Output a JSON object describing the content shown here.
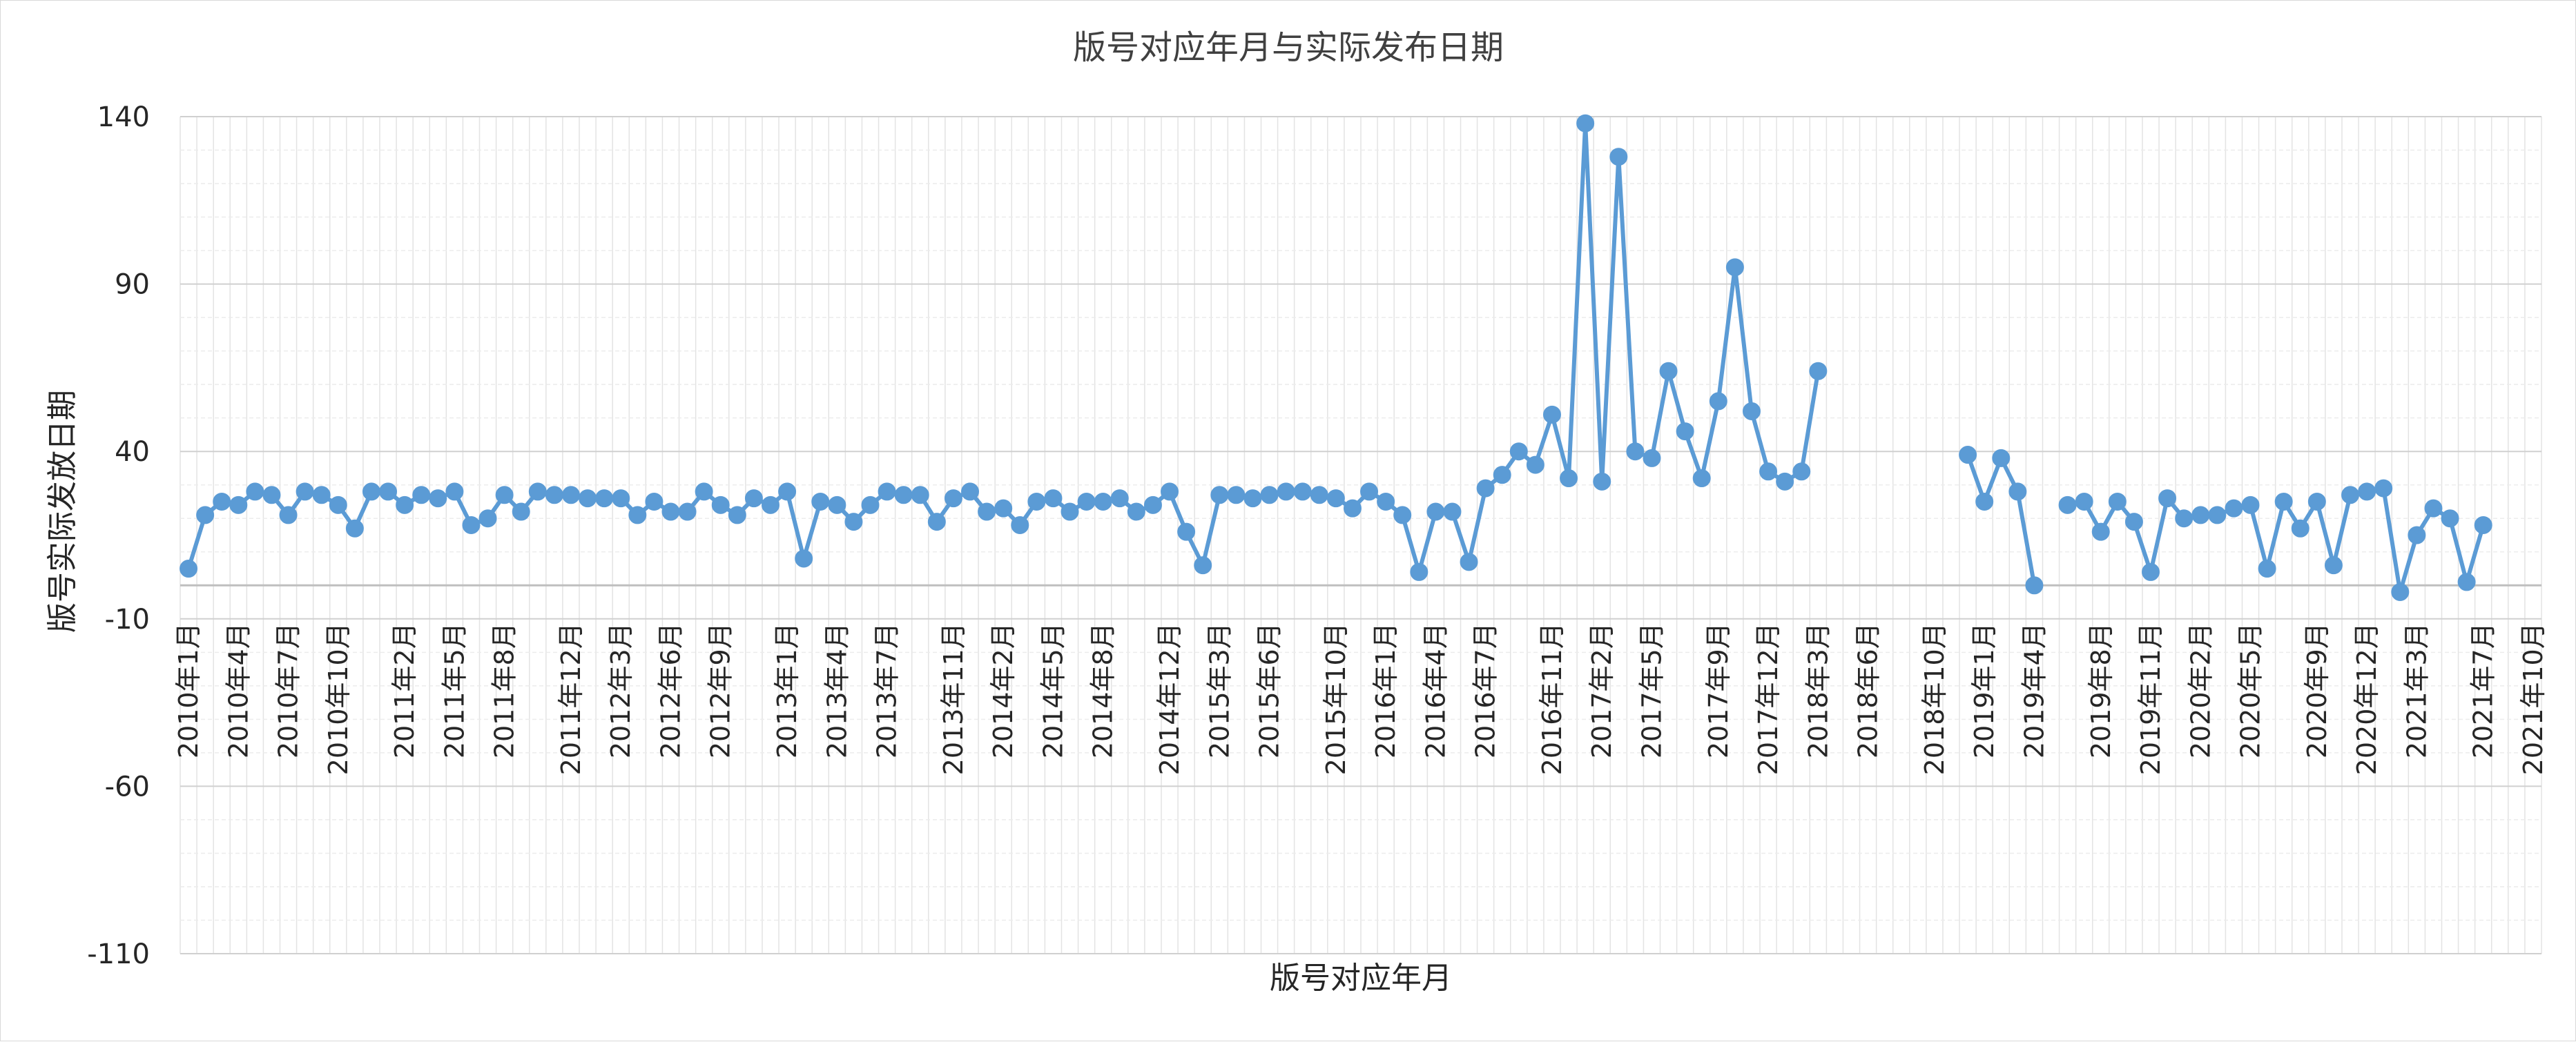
{
  "chart_data": {
    "type": "line",
    "title": "版号对应年月与实际发布日期",
    "xlabel": "版号对应年月",
    "ylabel": "版号实际发放日期",
    "ylim": [
      -110,
      140
    ],
    "yticks": [
      140,
      90,
      40,
      -10,
      -60,
      -110
    ],
    "ytick_labels": [
      "140",
      "90",
      "40",
      "-10",
      "-60",
      "-110"
    ],
    "grid": true,
    "legend": "none",
    "line_color": "#5b9bd5",
    "xtick_labels": [
      "2010年1月",
      "2010年4月",
      "2010年7月",
      "2010年10月",
      "2011年2月",
      "2011年5月",
      "2011年8月",
      "2011年12月",
      "2012年3月",
      "2012年6月",
      "2012年9月",
      "2013年1月",
      "2013年4月",
      "2013年7月",
      "2013年11月",
      "2014年2月",
      "2014年5月",
      "2014年8月",
      "2014年12月",
      "2015年3月",
      "2015年6月",
      "2015年10月",
      "2016年1月",
      "2016年4月",
      "2016年7月",
      "2016年11月",
      "2017年2月",
      "2017年5月",
      "2017年9月",
      "2017年12月",
      "2018年3月",
      "2018年6月",
      "2018年10月",
      "2019年1月",
      "2019年4月",
      "2019年8月",
      "2019年11月",
      "2020年2月",
      "2020年5月",
      "2020年9月",
      "2020年12月",
      "2021年3月",
      "2021年7月",
      "2021年10月"
    ],
    "x_categories": [
      "2010年1月",
      "2010年2月",
      "2010年3月",
      "2010年4月",
      "2010年5月",
      "2010年6月",
      "2010年7月",
      "2010年8月",
      "2010年9月",
      "2010年10月",
      "2010年11月",
      "2010年12月",
      "2011年1月",
      "2011年2月",
      "2011年3月",
      "2011年4月",
      "2011年5月",
      "2011年6月",
      "2011年7月",
      "2011年8月",
      "2011年9月",
      "2011年10月",
      "2011年11月",
      "2011年12月",
      "2012年1月",
      "2012年2月",
      "2012年3月",
      "2012年4月",
      "2012年5月",
      "2012年6月",
      "2012年7月",
      "2012年8月",
      "2012年9月",
      "2012年10月",
      "2012年11月",
      "2012年12月",
      "2013年1月",
      "2013年2月",
      "2013年3月",
      "2013年4月",
      "2013年5月",
      "2013年6月",
      "2013年7月",
      "2013年8月",
      "2013年9月",
      "2013年10月",
      "2013年11月",
      "2013年12月",
      "2014年1月",
      "2014年2月",
      "2014年3月",
      "2014年4月",
      "2014年5月",
      "2014年6月",
      "2014年7月",
      "2014年8月",
      "2014年9月",
      "2014年10月",
      "2014年11月",
      "2014年12月",
      "2015年1月",
      "2015年2月",
      "2015年3月",
      "2015年4月",
      "2015年5月",
      "2015年6月",
      "2015年7月",
      "2015年8月",
      "2015年9月",
      "2015年10月",
      "2015年11月",
      "2015年12月",
      "2016年1月",
      "2016年2月",
      "2016年3月",
      "2016年4月",
      "2016年5月",
      "2016年6月",
      "2016年7月",
      "2016年8月",
      "2016年9月",
      "2016年10月",
      "2016年11月",
      "2016年12月",
      "2017年1月",
      "2017年2月",
      "2017年3月",
      "2017年4月",
      "2017年5月",
      "2017年6月",
      "2017年7月",
      "2017年8月",
      "2017年9月",
      "2017年10月",
      "2017年11月",
      "2017年12月",
      "2018年1月",
      "2018年2月",
      "2018年3月",
      "2018年4月",
      "2018年5月",
      "2018年6月",
      "2018年7月",
      "2018年8月",
      "2018年9月",
      "2018年10月",
      "2018年11月",
      "2018年12月",
      "2019年1月",
      "2019年2月",
      "2019年3月",
      "2019年4月",
      "2019年5月",
      "2019年6月",
      "2019年7月",
      "2019年8月",
      "2019年9月",
      "2019年10月",
      "2019年11月",
      "2019年12月",
      "2020年1月",
      "2020年2月",
      "2020年3月",
      "2020年4月",
      "2020年5月",
      "2020年6月",
      "2020年7月",
      "2020年8月",
      "2020年9月",
      "2020年10月",
      "2020年11月",
      "2020年12月",
      "2021年1月",
      "2021年2月",
      "2021年3月",
      "2021年4月",
      "2021年5月",
      "2021年6月",
      "2021年7月",
      "2021年8月",
      "2021年9月",
      "2021年10月"
    ],
    "series": [
      {
        "values": [
          5,
          21,
          25,
          24,
          28,
          27,
          21,
          28,
          27,
          24,
          17,
          28,
          28,
          24,
          27,
          26,
          28,
          18,
          20,
          27,
          22,
          28,
          27,
          27,
          26,
          26,
          26,
          21,
          25,
          22,
          22,
          28,
          24,
          21,
          26,
          24,
          28,
          8,
          25,
          24,
          19,
          24,
          28,
          27,
          27,
          19,
          26,
          28,
          22,
          23,
          18,
          25,
          26,
          22,
          25,
          25,
          26,
          22,
          24,
          28,
          16,
          6,
          27,
          27,
          26,
          27,
          28,
          28,
          27,
          26,
          23,
          28,
          25,
          21,
          4,
          22,
          22,
          7,
          29,
          33,
          40,
          36,
          51,
          32,
          138,
          31,
          128,
          40,
          38,
          64,
          46,
          32,
          55,
          95,
          52,
          34,
          31,
          34,
          64,
          null,
          null,
          null,
          null,
          null,
          null,
          null,
          null,
          39,
          25,
          38,
          28,
          0,
          null,
          24,
          25,
          16,
          25,
          19,
          4,
          26,
          20,
          21,
          21,
          23,
          24,
          5,
          25,
          17,
          25,
          6,
          27,
          28,
          29,
          -2,
          15,
          23,
          20,
          1,
          18,
          null,
          null,
          null
        ]
      }
    ]
  }
}
